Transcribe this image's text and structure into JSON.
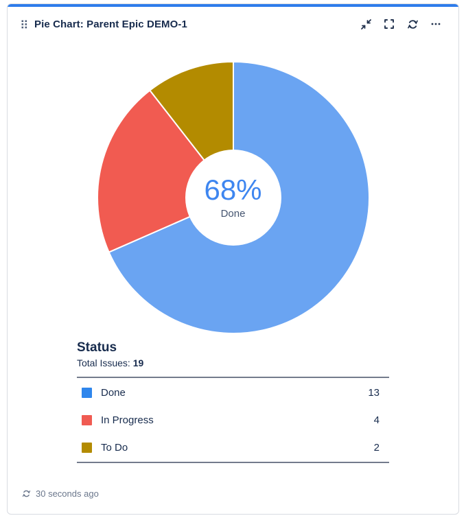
{
  "card": {
    "title": "Pie Chart: Parent Epic DEMO-1",
    "accent_color": "#2e7ceb"
  },
  "toolbar": {
    "buttons": [
      "minimize",
      "fullscreen",
      "refresh",
      "more"
    ]
  },
  "chart_data": {
    "type": "pie",
    "donut": true,
    "title": "Status",
    "total_label": "Total Issues:",
    "total_issues": 19,
    "center_percent": "68%",
    "center_label": "Done",
    "start_angle": "top",
    "direction": "clockwise",
    "legend_position": "bottom",
    "categories": [
      "Done",
      "In Progress",
      "To Do"
    ],
    "values": [
      13,
      4,
      2
    ],
    "series": [
      {
        "label": "Done",
        "value": 13,
        "slice_color": "#6aa4f2",
        "legend_color": "#2f86ec"
      },
      {
        "label": "In Progress",
        "value": 4,
        "slice_color": "#f15b51",
        "legend_color": "#f05b52"
      },
      {
        "label": "To Do",
        "value": 2,
        "slice_color": "#b38b00",
        "legend_color": "#b38b00"
      }
    ]
  },
  "footer": {
    "last_refreshed": "30 seconds ago"
  }
}
